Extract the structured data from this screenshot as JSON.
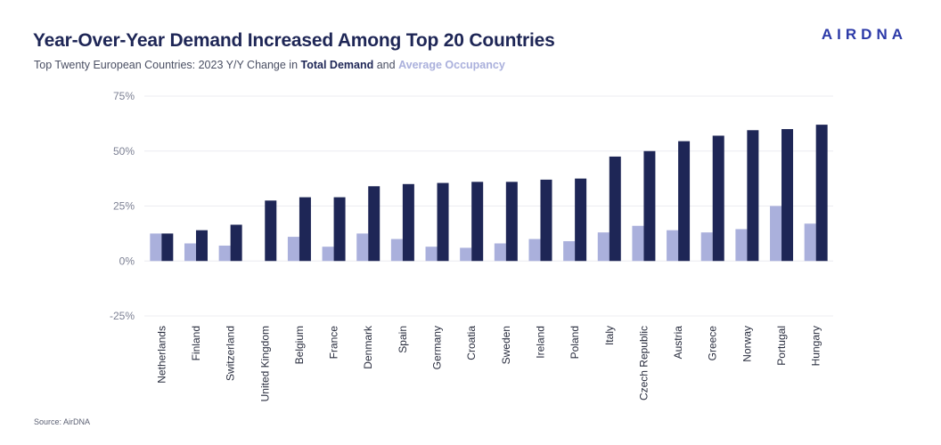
{
  "header": {
    "title": "Year-Over-Year Demand Increased Among Top 20 Countries",
    "subtitle_prefix": "Top Twenty European Countries: 2023 Y/Y Change in ",
    "subtitle_demand": "Total Demand",
    "subtitle_and": " and ",
    "subtitle_occupancy": "Average Occupancy",
    "logo": "AIRDNA"
  },
  "footer": {
    "source": "Source: AirDNA"
  },
  "colors": {
    "occupancy": "#aab0dc",
    "demand": "#1e2656",
    "grid": "#ececf0",
    "tick": "#7d8194"
  },
  "chart_data": {
    "type": "bar",
    "categories": [
      "Netherlands",
      "Finland",
      "Switzerland",
      "United Kingdom",
      "Belgium",
      "France",
      "Denmark",
      "Spain",
      "Germany",
      "Croatia",
      "Sweden",
      "Ireland",
      "Poland",
      "Italy",
      "Czech Republic",
      "Austria",
      "Greece",
      "Norway",
      "Portugal",
      "Hungary"
    ],
    "series": [
      {
        "name": "Average Occupancy",
        "values": [
          12.5,
          8,
          7,
          0,
          11,
          6.5,
          12.5,
          10,
          6.5,
          6,
          8,
          10,
          9,
          13,
          16,
          14,
          13,
          14.5,
          25,
          17
        ]
      },
      {
        "name": "Total Demand",
        "values": [
          12.5,
          14,
          16.5,
          27.5,
          29,
          29,
          34,
          35,
          35.5,
          36,
          36,
          37,
          37.5,
          47.5,
          50,
          54.5,
          57,
          59.5,
          60,
          62
        ]
      }
    ],
    "yticks": [
      "75%",
      "50%",
      "25%",
      "0%",
      "-25%"
    ],
    "ylim": [
      -25,
      75
    ],
    "grid": true
  }
}
